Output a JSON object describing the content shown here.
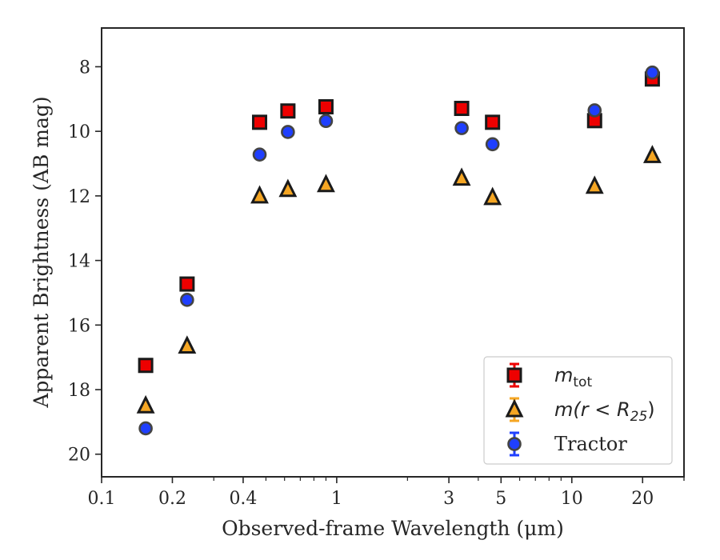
{
  "chart_data": {
    "type": "scatter",
    "xlabel": "Observed-frame Wavelength (μm)",
    "ylabel": "Apparent Brightness (AB mag)",
    "x_scale": "log",
    "xlim": [
      0.1,
      30
    ],
    "ylim": [
      20.7,
      6.8
    ],
    "y_inverted": true,
    "x_ticks": [
      {
        "value": 0.1,
        "label": "0.1"
      },
      {
        "value": 0.2,
        "label": "0.2"
      },
      {
        "value": 0.4,
        "label": "0.4"
      },
      {
        "value": 1,
        "label": "1"
      },
      {
        "value": 3,
        "label": "3"
      },
      {
        "value": 5,
        "label": "5"
      },
      {
        "value": 10,
        "label": "10"
      },
      {
        "value": 20,
        "label": "20"
      }
    ],
    "y_ticks": [
      {
        "value": 8,
        "label": "8"
      },
      {
        "value": 10,
        "label": "10"
      },
      {
        "value": 12,
        "label": "12"
      },
      {
        "value": 14,
        "label": "14"
      },
      {
        "value": 16,
        "label": "16"
      },
      {
        "value": 18,
        "label": "18"
      },
      {
        "value": 20,
        "label": "20"
      }
    ],
    "grid": false,
    "legend_position": "bottom-right",
    "series": [
      {
        "key": "m_tot",
        "marker": "square",
        "color": "#ee0000",
        "edge_color": "#1a1a1a",
        "legend": {
          "base": "m",
          "sub": "tot",
          "suffix": ""
        },
        "points": [
          {
            "x": 0.154,
            "y": 17.25
          },
          {
            "x": 0.231,
            "y": 14.73
          },
          {
            "x": 0.47,
            "y": 9.72
          },
          {
            "x": 0.62,
            "y": 9.37
          },
          {
            "x": 0.9,
            "y": 9.24
          },
          {
            "x": 3.4,
            "y": 9.29
          },
          {
            "x": 4.6,
            "y": 9.72
          },
          {
            "x": 12.5,
            "y": 9.67
          },
          {
            "x": 22.0,
            "y": 8.38
          }
        ]
      },
      {
        "key": "m_r25",
        "marker": "triangle",
        "color": "#f5a623",
        "edge_color": "#1a1a1a",
        "legend": {
          "base": "m(r < R",
          "sub": "25",
          "suffix": ")"
        },
        "points": [
          {
            "x": 0.154,
            "y": 18.5
          },
          {
            "x": 0.231,
            "y": 16.65
          },
          {
            "x": 0.47,
            "y": 12.0
          },
          {
            "x": 0.62,
            "y": 11.8
          },
          {
            "x": 0.9,
            "y": 11.65
          },
          {
            "x": 3.4,
            "y": 11.45
          },
          {
            "x": 4.6,
            "y": 12.05
          },
          {
            "x": 12.5,
            "y": 11.7
          },
          {
            "x": 22.0,
            "y": 10.75
          }
        ]
      },
      {
        "key": "tractor",
        "marker": "circle",
        "color": "#1f3fff",
        "edge_color": "#444444",
        "legend": {
          "base": "Tractor",
          "sub": "",
          "suffix": ""
        },
        "points": [
          {
            "x": 0.154,
            "y": 19.2
          },
          {
            "x": 0.231,
            "y": 15.22
          },
          {
            "x": 0.47,
            "y": 10.72
          },
          {
            "x": 0.62,
            "y": 10.02
          },
          {
            "x": 0.9,
            "y": 9.68
          },
          {
            "x": 3.4,
            "y": 9.9
          },
          {
            "x": 4.6,
            "y": 10.4
          },
          {
            "x": 12.5,
            "y": 9.35
          },
          {
            "x": 22.0,
            "y": 8.18
          }
        ]
      }
    ]
  }
}
